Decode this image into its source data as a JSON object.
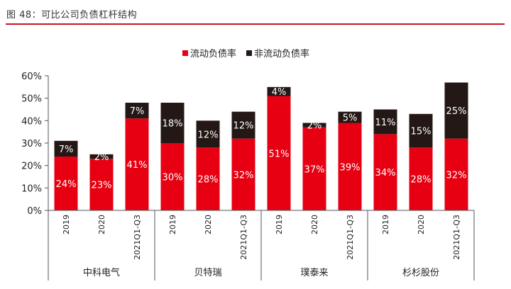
{
  "figure": {
    "title": "图 48：可比公司负债杠杆结构",
    "accent_color": "#c8171e"
  },
  "chart_data": {
    "type": "bar",
    "stacked": true,
    "categories": [
      "2019",
      "2020",
      "2021Q1-Q3",
      "2019",
      "2020",
      "2021Q1-Q3",
      "2019",
      "2020",
      "2021Q1-Q3",
      "2019",
      "2020",
      "2021Q1-Q3"
    ],
    "category_labels": [
      "2019",
      "2020",
      "2021Q1-Q3",
      "2019",
      "2020",
      "2021Q1-Q3",
      "2019",
      "2020",
      "2021Q1-Q3",
      "2019",
      "2020",
      "2021Q1-Q3"
    ],
    "groups": [
      {
        "name": "中科电气",
        "size": 3
      },
      {
        "name": "贝特瑞",
        "size": 3
      },
      {
        "name": "璞泰来",
        "size": 3
      },
      {
        "name": "杉杉股份",
        "size": 3
      }
    ],
    "series": [
      {
        "name": "流动负债率",
        "color": "#e60012",
        "values": [
          24,
          23,
          41,
          30,
          28,
          32,
          51,
          37,
          39,
          34,
          28,
          32
        ],
        "labels": [
          "24%",
          "23%",
          "41%",
          "30%",
          "28%",
          "32%",
          "51%",
          "37%",
          "39%",
          "34%",
          "28%",
          "32%"
        ]
      },
      {
        "name": "非流动负债率",
        "color": "#231815",
        "values": [
          7,
          2,
          7,
          18,
          12,
          12,
          4,
          2,
          5,
          11,
          15,
          25
        ],
        "labels": [
          "7%",
          "2%",
          "7%",
          "18%",
          "12%",
          "12%",
          "4%",
          "2%",
          "5%",
          "11%",
          "15%",
          "25%"
        ]
      }
    ],
    "ylim": [
      0,
      60
    ],
    "yticks": [
      0,
      10,
      20,
      30,
      40,
      50,
      60
    ],
    "ytick_labels": [
      "0%",
      "10%",
      "20%",
      "30%",
      "40%",
      "50%",
      "60%"
    ],
    "legend_position": "top-center",
    "grid": false
  }
}
